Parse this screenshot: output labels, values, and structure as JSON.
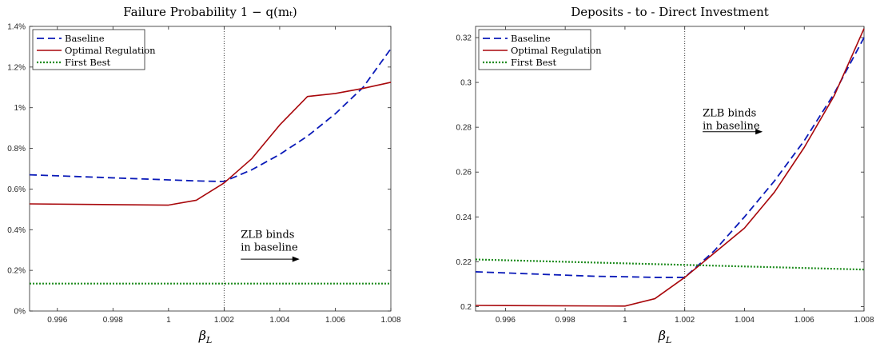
{
  "colors": {
    "baseline": "#0a1ab8",
    "optimal": "#a8070b",
    "first_best": "#1f8c1f",
    "axis": "#262626"
  },
  "chart_data": [
    {
      "type": "line",
      "title": "Failure Probability 1 − q(mₜ)",
      "xlabel": "β",
      "xlabel_sub": "L",
      "ylabel": "",
      "xlim": [
        0.995,
        1.008
      ],
      "ylim": [
        0,
        1.4
      ],
      "x_ticks": [
        0.996,
        0.998,
        1,
        1.002,
        1.004,
        1.006,
        1.008
      ],
      "x_tick_labels": [
        "0.996",
        "0.998",
        "1",
        "1.002",
        "1.004",
        "1.006",
        "1.008"
      ],
      "y_ticks": [
        0,
        0.2,
        0.4,
        0.6,
        0.8,
        1.0,
        1.2,
        1.4
      ],
      "y_tick_labels": [
        "0%",
        "0.2%",
        "0.4%",
        "0.6%",
        "0.8%",
        "1%",
        "1.2%",
        "1.4%"
      ],
      "vline_x": 1.002,
      "legend": {
        "position": "top-left",
        "entries": [
          "Baseline",
          "Optimal Regulation",
          "First Best"
        ]
      },
      "annotation": {
        "lines": [
          "ZLB binds",
          "in baseline"
        ],
        "x": 1.0026,
        "y": 0.36,
        "arrow_from": 1.0026,
        "arrow_to": 1.0046,
        "arrow_y": 0.255
      },
      "series": [
        {
          "name": "Baseline",
          "style": "dashed",
          "x": [
            0.995,
            0.996,
            0.997,
            0.998,
            0.999,
            1.0,
            1.001,
            1.002,
            1.003,
            1.004,
            1.005,
            1.006,
            1.007,
            1.008
          ],
          "values": [
            0.67,
            0.665,
            0.66,
            0.655,
            0.65,
            0.645,
            0.64,
            0.637,
            0.695,
            0.77,
            0.86,
            0.97,
            1.1,
            1.29
          ]
        },
        {
          "name": "Optimal Regulation",
          "style": "solid",
          "x": [
            0.995,
            1.0,
            1.001,
            1.002,
            1.003,
            1.004,
            1.005,
            1.006,
            1.007,
            1.008
          ],
          "values": [
            0.527,
            0.521,
            0.545,
            0.63,
            0.75,
            0.915,
            1.055,
            1.07,
            1.095,
            1.125
          ]
        },
        {
          "name": "First Best",
          "style": "dotted",
          "x": [
            0.995,
            1.008
          ],
          "values": [
            0.135,
            0.135
          ]
        }
      ]
    },
    {
      "type": "line",
      "title": "Deposits - to - Direct Investment",
      "xlabel": "β",
      "xlabel_sub": "L",
      "ylabel": "",
      "xlim": [
        0.995,
        1.008
      ],
      "ylim": [
        0.198,
        0.325
      ],
      "x_ticks": [
        0.996,
        0.998,
        1,
        1.002,
        1.004,
        1.006,
        1.008
      ],
      "x_tick_labels": [
        "0.996",
        "0.998",
        "1",
        "1.002",
        "1.004",
        "1.006",
        "1.008"
      ],
      "y_ticks": [
        0.2,
        0.22,
        0.24,
        0.26,
        0.28,
        0.3,
        0.32
      ],
      "y_tick_labels": [
        "0.2",
        "0.22",
        "0.24",
        "0.26",
        "0.28",
        "0.3",
        "0.32"
      ],
      "vline_x": 1.002,
      "legend": {
        "position": "top-left",
        "entries": [
          "Baseline",
          "Optimal Regulation",
          "First Best"
        ]
      },
      "annotation": {
        "lines": [
          "ZLB binds",
          "in baseline"
        ],
        "x": 1.0026,
        "y": 0.2848,
        "arrow_from": 1.0026,
        "arrow_to": 1.0045,
        "arrow_y": 0.278
      },
      "series": [
        {
          "name": "Baseline",
          "style": "dashed",
          "x": [
            0.995,
            0.996,
            0.997,
            0.998,
            0.999,
            1.0,
            1.001,
            1.002,
            1.003,
            1.004,
            1.005,
            1.006,
            1.007,
            1.008
          ],
          "values": [
            0.2155,
            0.215,
            0.2145,
            0.214,
            0.2135,
            0.2133,
            0.213,
            0.213,
            0.225,
            0.24,
            0.256,
            0.274,
            0.295,
            0.32
          ]
        },
        {
          "name": "Optimal Regulation",
          "style": "solid",
          "x": [
            0.995,
            1.0,
            1.001,
            1.002,
            1.003,
            1.004,
            1.005,
            1.006,
            1.007,
            1.008
          ],
          "values": [
            0.2005,
            0.2002,
            0.2035,
            0.213,
            0.224,
            0.235,
            0.251,
            0.271,
            0.294,
            0.324
          ]
        },
        {
          "name": "First Best",
          "style": "dotted",
          "x": [
            0.995,
            1.008
          ],
          "values": [
            0.221,
            0.2165
          ]
        }
      ]
    }
  ]
}
